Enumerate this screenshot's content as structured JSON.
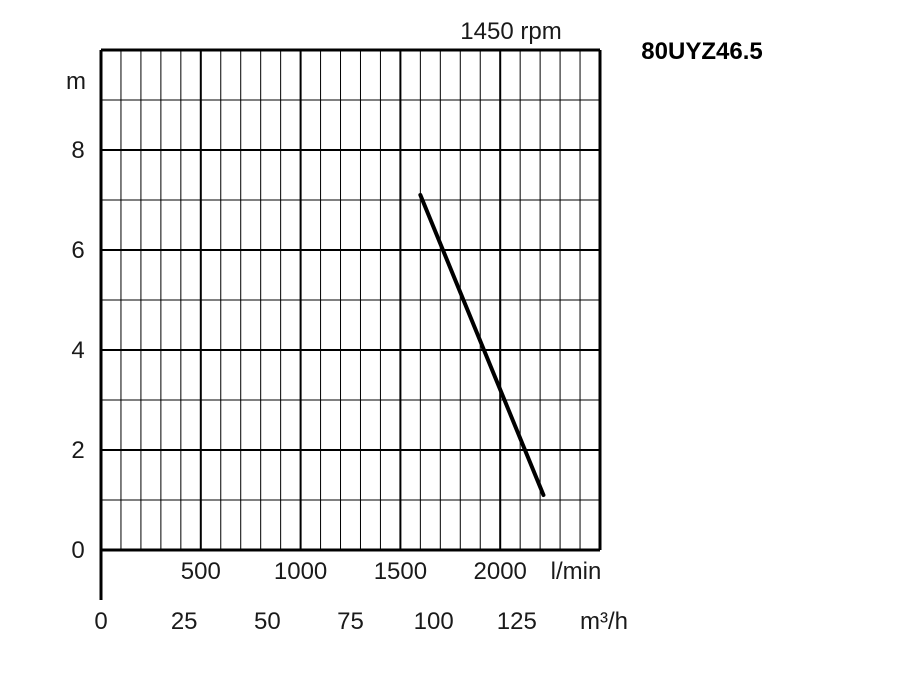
{
  "chart_data": {
    "type": "line",
    "model": "80UYZ46.5",
    "speed": "1450 rpm",
    "y_unit": "m",
    "flow_unit_lmin": "l/min",
    "flow_unit_m3h": "m³/h",
    "ylim": [
      0,
      10
    ],
    "y_ticks": [
      0,
      2,
      4,
      6,
      8
    ],
    "x_m3h_lim": [
      0,
      150
    ],
    "x_m3h_ticks": [
      0,
      25,
      50,
      75,
      100,
      125
    ],
    "x_lmin_ticks": [
      500,
      1000,
      1500,
      2000
    ],
    "grid": true,
    "series": [
      {
        "x_m3h": [
          96,
          133
        ],
        "y": [
          7.1,
          1.1
        ]
      }
    ],
    "colors": {
      "line": "#000000",
      "grid": "#000000"
    }
  }
}
